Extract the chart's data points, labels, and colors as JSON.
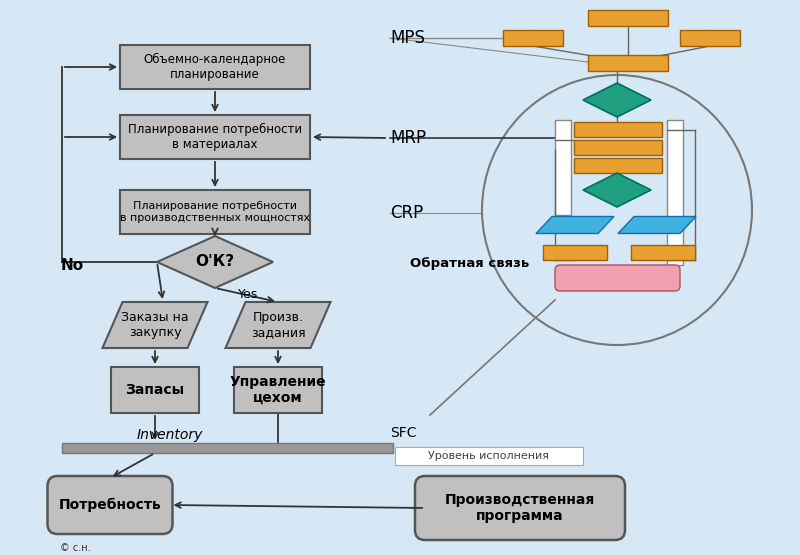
{
  "bg_color": "#d6e8f5",
  "box_fill": "#c0c0c0",
  "box_stroke": "#555555",
  "orange": "#e8a030",
  "teal": "#20a080",
  "blue_para": "#40b0e0",
  "pink": "#f0a0b0",
  "white": "#ffffff",
  "labels": {
    "box1": "Объемно-календарное\nпланирование",
    "box2": "Планирование потребности\nв материалах",
    "box3": "Планирование потребности\nв производственных мощностях",
    "diamond": "О'К?",
    "para_left": "Заказы на\nзакупку",
    "para_right": "Произв.\nзадания",
    "box_zapasy": "Запасы",
    "box_upravl": "Управление\nцехом",
    "potreb": "Потребность",
    "proizv": "Производственная\nпрограмма",
    "MPS": "MPS",
    "MRP": "MRP",
    "CRP": "CRP",
    "No": "No",
    "Yes": "Yes",
    "Inventory": "Inventory",
    "SFC": "SFC",
    "obratnaya": "Обратная связь",
    "uroven": "Уровень исполнения",
    "copy": "© с.н."
  }
}
